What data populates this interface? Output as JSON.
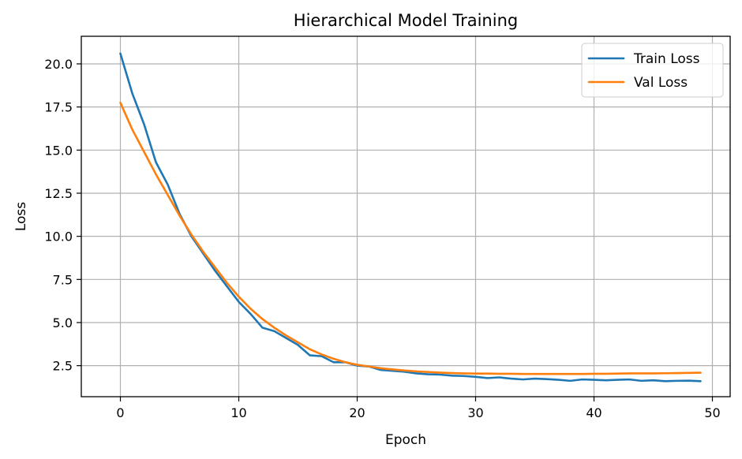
{
  "chart_data": {
    "type": "line",
    "title": "Hierarchical Model Training",
    "xlabel": "Epoch",
    "ylabel": "Loss",
    "xlim": [
      -3.3,
      51.5
    ],
    "ylim": [
      0.7,
      21.6
    ],
    "xticks": [
      0,
      10,
      20,
      30,
      40,
      50
    ],
    "yticks": [
      2.5,
      5.0,
      7.5,
      10.0,
      12.5,
      15.0,
      17.5,
      20.0
    ],
    "ytick_labels": [
      "2.5",
      "5.0",
      "7.5",
      "10.0",
      "12.5",
      "15.0",
      "17.5",
      "20.0"
    ],
    "xtick_labels": [
      "0",
      "10",
      "20",
      "30",
      "40",
      "50"
    ],
    "grid": true,
    "legend_position": "upper-right",
    "x": [
      0,
      1,
      2,
      3,
      4,
      5,
      6,
      7,
      8,
      9,
      10,
      11,
      12,
      13,
      14,
      15,
      16,
      17,
      18,
      19,
      20,
      21,
      22,
      23,
      24,
      25,
      26,
      27,
      28,
      29,
      30,
      31,
      32,
      33,
      34,
      35,
      36,
      37,
      38,
      39,
      40,
      41,
      42,
      43,
      44,
      45,
      46,
      47,
      48,
      49
    ],
    "series": [
      {
        "name": "Train Loss",
        "color": "#1f77b4",
        "values": [
          20.6,
          18.3,
          16.5,
          14.3,
          13.0,
          11.3,
          10.0,
          9.0,
          8.0,
          7.1,
          6.2,
          5.5,
          4.7,
          4.5,
          4.1,
          3.7,
          3.1,
          3.05,
          2.7,
          2.7,
          2.5,
          2.45,
          2.25,
          2.2,
          2.15,
          2.05,
          2.0,
          1.98,
          1.92,
          1.9,
          1.85,
          1.78,
          1.82,
          1.75,
          1.7,
          1.75,
          1.72,
          1.68,
          1.62,
          1.7,
          1.68,
          1.65,
          1.68,
          1.7,
          1.62,
          1.65,
          1.6,
          1.62,
          1.63,
          1.6
        ]
      },
      {
        "name": "Val Loss",
        "color": "#ff7f0e",
        "values": [
          17.75,
          16.2,
          14.9,
          13.6,
          12.4,
          11.2,
          10.1,
          9.1,
          8.2,
          7.3,
          6.5,
          5.8,
          5.2,
          4.7,
          4.25,
          3.85,
          3.45,
          3.15,
          2.9,
          2.7,
          2.55,
          2.45,
          2.35,
          2.28,
          2.22,
          2.17,
          2.13,
          2.1,
          2.07,
          2.05,
          2.04,
          2.04,
          2.03,
          2.03,
          2.02,
          2.02,
          2.02,
          2.02,
          2.02,
          2.02,
          2.03,
          2.03,
          2.04,
          2.05,
          2.05,
          2.05,
          2.06,
          2.07,
          2.08,
          2.09
        ]
      }
    ]
  }
}
